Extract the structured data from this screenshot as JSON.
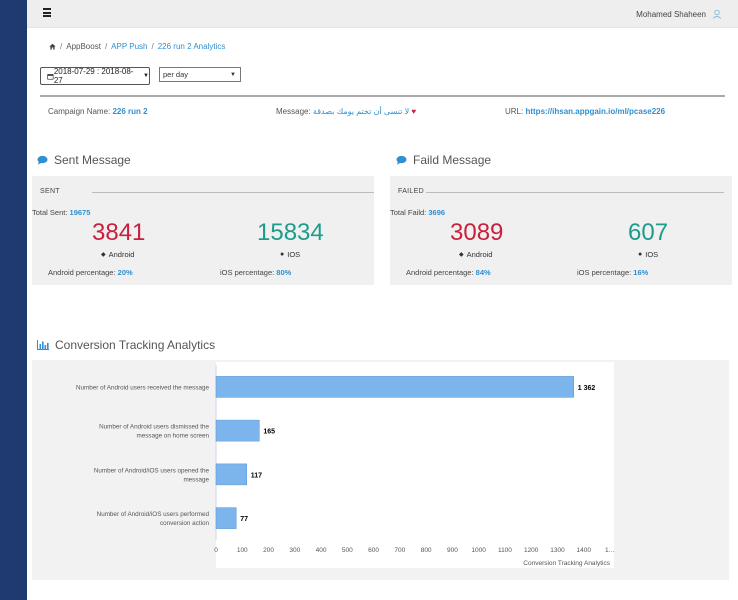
{
  "topbar": {
    "username": "Mohamed Shaheen"
  },
  "breadcrumb": {
    "home": "AppBoost",
    "sep": "/",
    "items": [
      "APP Push",
      "226 run 2 Analytics"
    ]
  },
  "filters": {
    "date_range": "2018-07-29 : 2018-08-27",
    "period": "per day"
  },
  "campaign": {
    "name_label": "Campaign Name:",
    "name_value": "226 run 2",
    "message_label": "Message:",
    "message_value": "لا تنسى أن تختم يومك بصدقة",
    "url_label": "URL:",
    "url_value": "https://ihsan.appgain.io/ml/pcase226"
  },
  "sent": {
    "title": "Sent Message",
    "legend": "SENT",
    "total_label": "Total Sent:",
    "total_value": "19675",
    "android_value": "3841",
    "android_label": "Android",
    "ios_value": "15834",
    "ios_label": "IOS",
    "android_pct_label": "Android percentage:",
    "android_pct_value": "20%",
    "ios_pct_label": "iOS percentage:",
    "ios_pct_value": "80%"
  },
  "failed": {
    "title": "Faild Message",
    "legend": "FAILED",
    "total_label": "Total Faild:",
    "total_value": "3696",
    "android_value": "3089",
    "android_label": "Android",
    "ios_value": "607",
    "ios_label": "IOS",
    "android_pct_label": "Android percentage:",
    "android_pct_value": "84%",
    "ios_pct_label": "iOS percentage:",
    "ios_pct_value": "16%"
  },
  "conversion": {
    "title": "Conversion Tracking Analytics"
  },
  "chart_data": {
    "type": "bar",
    "orientation": "horizontal",
    "title": "",
    "xlabel": "Conversion Tracking Analytics",
    "categories": [
      "Number of Android users received the message",
      "Number of Android users dismissed the message on home screen",
      "Number of Android/iOS users opened the message",
      "Number of Android/iOS users performed conversion action"
    ],
    "values": [
      1362,
      165,
      117,
      77
    ],
    "value_labels": [
      "1 362",
      "165",
      "117",
      "77"
    ],
    "xticks": [
      "0",
      "100",
      "200",
      "300",
      "400",
      "500",
      "600",
      "700",
      "800",
      "900",
      "1000",
      "1100",
      "1200",
      "1300",
      "1400",
      "1…"
    ],
    "xlim": [
      0,
      1500
    ],
    "bar_color": "#7cb5ec"
  }
}
